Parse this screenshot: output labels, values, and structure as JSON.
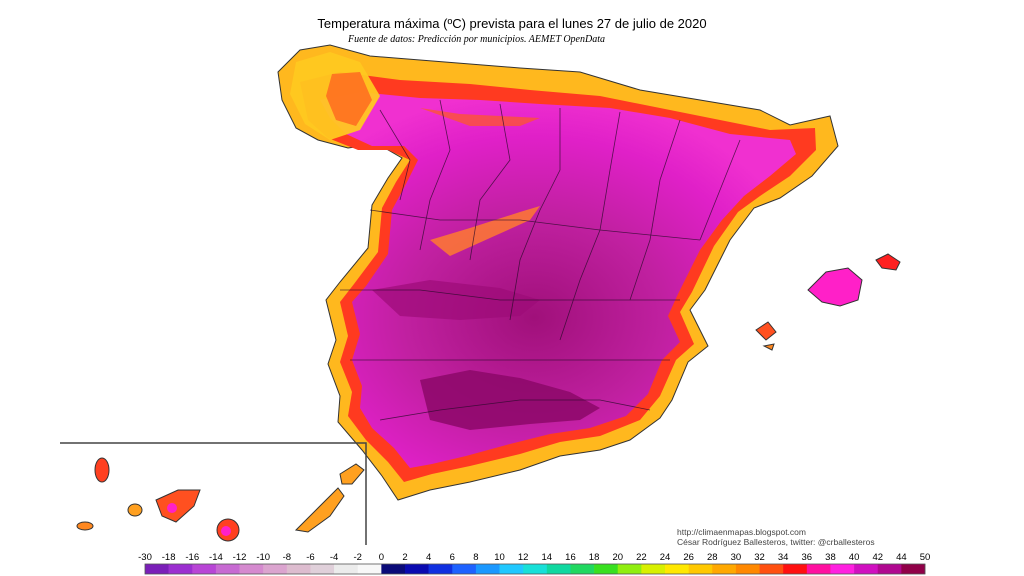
{
  "title": "Temperatura máxima (ºC) prevista para el lunes 27 de julio de 2020",
  "subtitle": "Fuente de datos: Predicción por municipios. AEMET OpenData",
  "credits": {
    "line1": "http://climaenmapas.blogspot.com",
    "line2": "César Rodríguez Ballesteros, twitter: @crballesteros"
  },
  "legend": {
    "ticks": [
      "-30",
      "-18",
      "-16",
      "-14",
      "-12",
      "-10",
      "-8",
      "-6",
      "-4",
      "-2",
      "0",
      "2",
      "4",
      "6",
      "8",
      "10",
      "12",
      "14",
      "16",
      "18",
      "20",
      "22",
      "24",
      "26",
      "28",
      "30",
      "32",
      "34",
      "36",
      "38",
      "40",
      "42",
      "44",
      "50"
    ],
    "colors": [
      "#7a1fb8",
      "#9b2fd0",
      "#b845d6",
      "#c76ad2",
      "#d58acf",
      "#dba4cf",
      "#ddbccf",
      "#e0d0da",
      "#ececec",
      "#f8f8f8",
      "#0a0a78",
      "#0a0ab0",
      "#1030e0",
      "#1e62ff",
      "#1b98ff",
      "#20c8ff",
      "#18e0d8",
      "#10d8a0",
      "#20d860",
      "#38e020",
      "#90ee10",
      "#d8f000",
      "#ffe800",
      "#ffc800",
      "#ffa800",
      "#ff8800",
      "#ff5010",
      "#ff1010",
      "#ff10a0",
      "#ff20e0",
      "#d010c0",
      "#b00890",
      "#900048"
    ]
  }
}
